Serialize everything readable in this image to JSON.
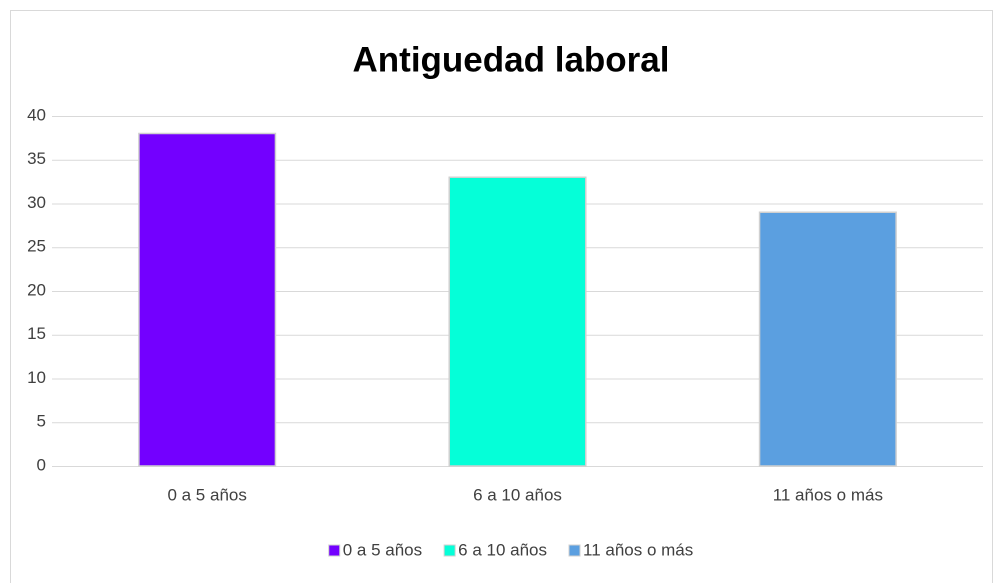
{
  "chart_data": {
    "type": "bar",
    "title": "Antiguedad laboral",
    "categories": [
      "0 a 5 años",
      "6 a 10 años",
      "11 años o más"
    ],
    "values": [
      38,
      33,
      29
    ],
    "colors": [
      "#7300ff",
      "#05ffd8",
      "#5b9fe0"
    ],
    "ylim": [
      0,
      40
    ],
    "yticks": [
      0,
      5,
      10,
      15,
      20,
      25,
      30,
      35,
      40
    ],
    "grid": true,
    "legend": "bottom"
  }
}
